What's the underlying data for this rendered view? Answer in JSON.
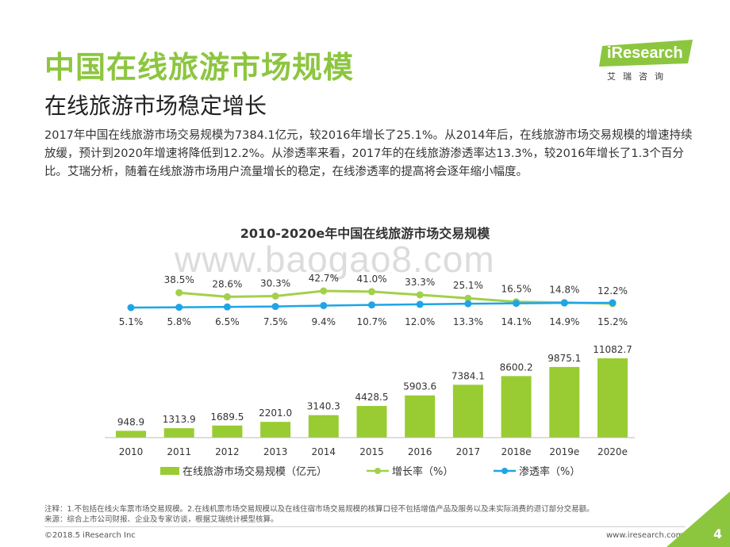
{
  "header": {
    "title": "中国在线旅游市场规模",
    "subtitle": "在线旅游市场稳定增长",
    "paragraph": "2017年中国在线旅游市场交易规模为7384.1亿元，较2016年增长了25.1%。从2014年后，在线旅游市场交易规模的增速持续放缓，预计到2020年增速将降低到12.2%。从渗透率来看，2017年的在线旅游渗透率达13.3%，较2016年增长了1.3个百分比。艾瑞分析，随着在线旅游市场用户流量增长的稳定，在线渗透率的提高将会逐年缩小幅度。"
  },
  "logo": {
    "word": "iResearch",
    "cn": "艾瑞咨询"
  },
  "watermark": "www.baogao8.com",
  "colors": {
    "accent": "#8cc63f",
    "bar": "#99cc33",
    "growth": "#a3d04a",
    "penetration": "#1ea5e6"
  },
  "chart_data": {
    "type": "bar",
    "title": "2010-2020e年中国在线旅游市场交易规模",
    "categories": [
      "2010",
      "2011",
      "2012",
      "2013",
      "2014",
      "2015",
      "2016",
      "2017",
      "2018e",
      "2019e",
      "2020e"
    ],
    "series": [
      {
        "name": "在线旅游市场交易规模（亿元）",
        "type": "bar",
        "values": [
          948.9,
          1313.9,
          1689.5,
          2201.0,
          3140.3,
          4428.5,
          5903.6,
          7384.1,
          8600.2,
          9875.1,
          11082.7
        ],
        "labels": [
          "948.9",
          "1313.9",
          "1689.5",
          "2201.0",
          "3140.3",
          "4428.5",
          "5903.6",
          "7384.1",
          "8600.2",
          "9875.1",
          "11082.7"
        ]
      },
      {
        "name": "增长率（%）",
        "type": "line",
        "values": [
          null,
          38.5,
          28.6,
          30.3,
          42.7,
          41.0,
          33.3,
          25.1,
          16.5,
          14.8,
          12.2
        ],
        "labels": [
          "",
          "38.5%",
          "28.6%",
          "30.3%",
          "42.7%",
          "41.0%",
          "33.3%",
          "25.1%",
          "16.5%",
          "14.8%",
          "12.2%"
        ]
      },
      {
        "name": "渗透率（%）",
        "type": "line",
        "values": [
          5.1,
          5.8,
          6.5,
          7.5,
          9.4,
          10.7,
          12.0,
          13.3,
          14.1,
          14.9,
          15.2
        ],
        "labels": [
          "5.1%",
          "5.8%",
          "6.5%",
          "7.5%",
          "9.4%",
          "10.7%",
          "12.0%",
          "13.3%",
          "14.1%",
          "14.9%",
          "15.2%"
        ]
      }
    ],
    "legend_position": "bottom",
    "grid": false
  },
  "footnote": {
    "line1": "注释：1.不包括在线火车票市场交易规模。2.在线机票市场交易规模以及在线住宿市场交易规模的核算口径不包括增值产品及服务以及未实际消费的退订部分交易额。",
    "line2": "来源：综合上市公司财报、企业及专家访谈，根据艾瑞统计模型核算。"
  },
  "footer": {
    "copyright": "©2018.5 iResearch Inc",
    "website": "www.iresearch.com.cn",
    "page": "4"
  }
}
